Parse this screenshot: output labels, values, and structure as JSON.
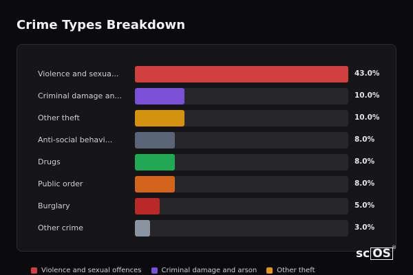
{
  "chart_data": {
    "type": "bar",
    "orientation": "horizontal",
    "title": "Crime Types Breakdown",
    "xlim": [
      0,
      43
    ],
    "grid": false,
    "legend_position": "bottom",
    "categories": [
      "Violence and sexual offences",
      "Criminal damage and arson",
      "Other theft",
      "Anti-social behaviour",
      "Drugs",
      "Public order",
      "Burglary",
      "Other crime"
    ],
    "display_labels": [
      "Violence and sexua...",
      "Criminal damage an...",
      "Other theft",
      "Anti-social behavi...",
      "Drugs",
      "Public order",
      "Burglary",
      "Other crime"
    ],
    "values": [
      43.0,
      10.0,
      10.0,
      8.0,
      8.0,
      8.0,
      5.0,
      3.0
    ],
    "value_labels": [
      "43.0%",
      "10.0%",
      "10.0%",
      "8.0%",
      "8.0%",
      "8.0%",
      "5.0%",
      "3.0%"
    ],
    "colors": [
      "#d23f3f",
      "#7b4fd6",
      "#d4900f",
      "#5a6678",
      "#22a855",
      "#d2641c",
      "#bb2828",
      "#8a93a2"
    ],
    "legend": [
      {
        "label": "Violence and sexual offences",
        "color": "#d23f3f"
      },
      {
        "label": "Criminal damage and arson",
        "color": "#7b4fd6"
      },
      {
        "label": "Other theft",
        "color": "#e0961a"
      }
    ]
  },
  "logo": {
    "text_a": "sc",
    "text_b": "OS",
    "mark": "®"
  }
}
